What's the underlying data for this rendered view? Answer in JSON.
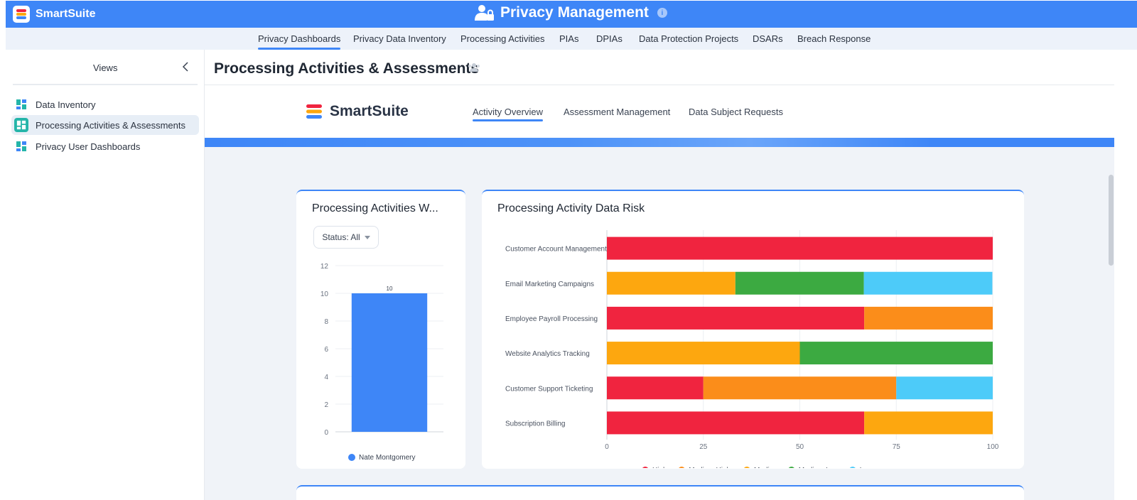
{
  "app": {
    "brand_name": "SmartSuite",
    "title": "Privacy Management"
  },
  "nav_tabs": [
    {
      "label": "Privacy Dashboards",
      "active": true
    },
    {
      "label": "Privacy Data Inventory"
    },
    {
      "label": "Processing Activities"
    },
    {
      "label": "PIAs"
    },
    {
      "label": "DPIAs"
    },
    {
      "label": "Data Protection Projects"
    },
    {
      "label": "DSARs"
    },
    {
      "label": "Breach Response"
    }
  ],
  "sidebar": {
    "header": "Views",
    "items": [
      {
        "label": "Data Inventory",
        "icon": "dashboard-icon"
      },
      {
        "label": "Processing Activities & Assessments",
        "icon": "dashboard-icon",
        "active": true
      },
      {
        "label": "Privacy User Dashboards",
        "icon": "dashboard-icon"
      }
    ]
  },
  "page": {
    "title": "Processing Activities & Assessments"
  },
  "dashboard": {
    "brand_name": "SmartSuite",
    "tabs": [
      {
        "label": "Activity Overview",
        "active": true
      },
      {
        "label": "Assessment Management"
      },
      {
        "label": "Data Subject Requests"
      }
    ]
  },
  "colors": {
    "accent": "#3e86f7",
    "high": "#f0243f",
    "medium_high": "#fb8d1a",
    "medium": "#fda70f",
    "medium_low": "#3caa41",
    "low": "#4dcbf9"
  },
  "cards": {
    "left": {
      "title": "Processing Activities W...",
      "filter_label": "Status: All"
    },
    "right": {
      "title": "Processing Activity Data Risk"
    }
  },
  "chart_data": [
    {
      "type": "bar",
      "categories": [
        "Nate Montgomery"
      ],
      "series": [
        {
          "name": "Nate Montgomery",
          "values": [
            10
          ]
        }
      ],
      "data_labels": [
        "10"
      ],
      "yticks": [
        "0",
        "2",
        "4",
        "6",
        "8",
        "10",
        "12"
      ],
      "ylim": [
        0,
        12
      ],
      "legend": [
        "Nate Montgomery"
      ],
      "legend_position": "bottom",
      "grid": true
    },
    {
      "type": "bar",
      "orientation": "horizontal",
      "stacked": true,
      "categories": [
        "Customer Account Management",
        "Email Marketing Campaigns",
        "Employee Payroll Processing",
        "Website Analytics Tracking",
        "Customer Support Ticketing",
        "Subscription Billing"
      ],
      "series": [
        {
          "name": "High",
          "values": [
            100,
            0,
            66.7,
            0,
            25,
            66.7
          ]
        },
        {
          "name": "Medium High",
          "values": [
            0,
            0,
            33.3,
            0,
            50,
            0
          ]
        },
        {
          "name": "Medium",
          "values": [
            0,
            33.3,
            0,
            50,
            0,
            33.3
          ]
        },
        {
          "name": "Medium Low",
          "values": [
            0,
            33.3,
            0,
            50,
            0,
            0
          ]
        },
        {
          "name": "Low",
          "values": [
            0,
            33.3,
            0,
            0,
            25,
            0
          ]
        }
      ],
      "xticks": [
        "0",
        "25",
        "50",
        "75",
        "100"
      ],
      "xlim": [
        0,
        100
      ],
      "legend_position": "bottom",
      "grid": true
    }
  ]
}
